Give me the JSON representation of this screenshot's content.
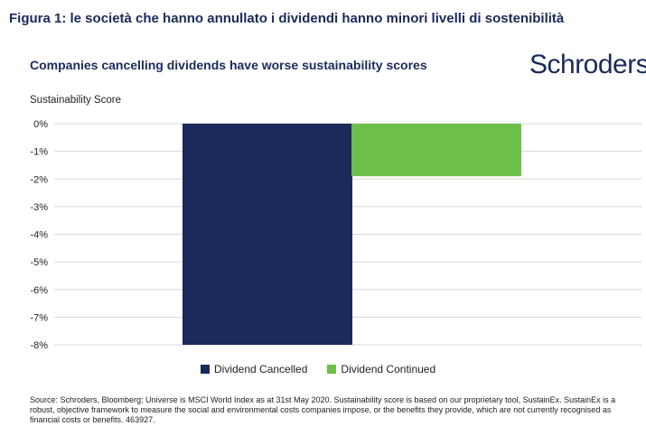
{
  "figure_title": "Figura 1: le società che hanno annullato i dividendi hanno minori livelli di sostenibilità",
  "logo_text": "Schroders",
  "source": "Source: Schroders, Bloomberg; Universe is MSCI World Index as at 31st May 2020. Sustainability score is based on our proprietary tool, SustainEx. SustainEx is a robust, objective framework to measure the social and environmental costs companies impose, or the benefits they provide, which are not currently recognised as financial costs or benefits. 463927.",
  "colors": {
    "dark_blue": "#1b2a5a",
    "green": "#6cc04a",
    "grid": "#d9d9d9"
  },
  "chart_data": {
    "type": "bar",
    "title": "Companies cancelling dividends have worse sustainability scores",
    "ylabel": "Sustainability Score",
    "xlabel": "",
    "ylim": [
      -8,
      0
    ],
    "yticks": [
      0,
      -1,
      -2,
      -3,
      -4,
      -5,
      -6,
      -7,
      -8
    ],
    "ytick_labels": [
      "0%",
      "-1%",
      "-2%",
      "-3%",
      "-4%",
      "-5%",
      "-6%",
      "-7%",
      "-8%"
    ],
    "grid": true,
    "legend": "bottom",
    "series": [
      {
        "name": "Dividend Cancelled",
        "values": [
          -8.0
        ],
        "color": "#1b2a5a"
      },
      {
        "name": "Dividend Continued",
        "values": [
          -1.9
        ],
        "color": "#6cc04a"
      }
    ]
  }
}
